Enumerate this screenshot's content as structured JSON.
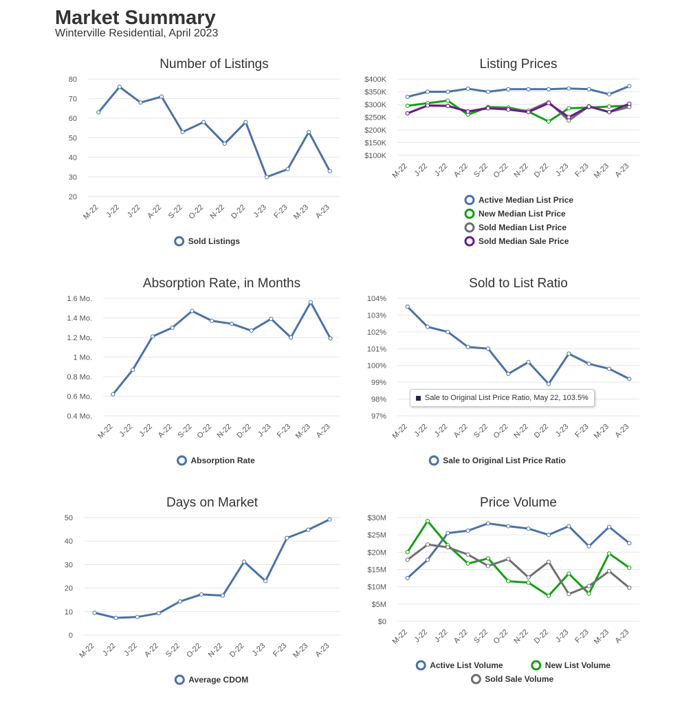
{
  "header": {
    "title": "Market Summary",
    "subtitle": "Winterville Residential, April 2023"
  },
  "colors": {
    "blue": "#4a72a8",
    "green": "#14a014",
    "gray": "#6f6f6f",
    "purple": "#6b1a8c"
  },
  "chart_data": [
    {
      "id": "listings",
      "type": "line",
      "title": "Number of Listings",
      "categories": [
        "M-22",
        "J-22",
        "J-22",
        "A-22",
        "S-22",
        "O-22",
        "N-22",
        "D-22",
        "J-23",
        "F-23",
        "M-23",
        "A-23"
      ],
      "ylim": [
        20,
        80
      ],
      "yticks": [
        20,
        30,
        40,
        50,
        60,
        70,
        80
      ],
      "ytick_labels": [
        "20",
        "30",
        "40",
        "50",
        "60",
        "70",
        "80"
      ],
      "series": [
        {
          "name": "Sold Listings",
          "color": "#4a72a8",
          "values": [
            63,
            76,
            68,
            71,
            53,
            58,
            47,
            58,
            30,
            34,
            53,
            33
          ]
        }
      ]
    },
    {
      "id": "prices",
      "type": "line",
      "title": "Listing Prices",
      "categories": [
        "M-22",
        "J-22",
        "J-22",
        "A-22",
        "S-22",
        "O-22",
        "N-22",
        "D-22",
        "J-23",
        "F-23",
        "M-23",
        "A-23"
      ],
      "ylim": [
        100000,
        400000
      ],
      "yticks": [
        100000,
        150000,
        200000,
        250000,
        300000,
        350000,
        400000
      ],
      "ytick_labels": [
        "$100K",
        "$150K",
        "$200K",
        "$250K",
        "$300K",
        "$350K",
        "$400K"
      ],
      "series": [
        {
          "name": "Active Median List Price",
          "color": "#4a72a8",
          "values": [
            330000,
            350000,
            350000,
            362000,
            350000,
            360000,
            360000,
            360000,
            363000,
            360000,
            340000,
            372000
          ]
        },
        {
          "name": "New Median List Price",
          "color": "#14a014",
          "values": [
            295000,
            305000,
            315000,
            260000,
            290000,
            288000,
            272000,
            233000,
            285000,
            288000,
            292000,
            295000
          ]
        },
        {
          "name": "Sold Median List Price",
          "color": "#6f6f6f",
          "values": [
            265000,
            296000,
            295000,
            273000,
            287000,
            282000,
            275000,
            310000,
            237000,
            293000,
            270000,
            290000
          ]
        },
        {
          "name": "Sold Median Sale Price",
          "color": "#6b1a8c",
          "values": [
            265000,
            296000,
            294000,
            272000,
            285000,
            280000,
            270000,
            305000,
            250000,
            292000,
            270000,
            303000
          ]
        }
      ]
    },
    {
      "id": "absorption",
      "type": "line",
      "title": "Absorption Rate, in Months",
      "categories": [
        "M-22",
        "J-22",
        "J-22",
        "A-22",
        "S-22",
        "O-22",
        "N-22",
        "D-22",
        "J-23",
        "F-23",
        "M-23",
        "A-23"
      ],
      "ylim": [
        0.4,
        1.6
      ],
      "yticks": [
        0.4,
        0.6,
        0.8,
        1.0,
        1.2,
        1.4,
        1.6
      ],
      "ytick_labels": [
        "0.4 Mo.",
        "0.6 Mo.",
        "0.8 Mo.",
        "1 Mo.",
        "1.2 Mo.",
        "1.4 Mo.",
        "1.6 Mo."
      ],
      "series": [
        {
          "name": "Absorption Rate",
          "color": "#4a72a8",
          "values": [
            0.62,
            0.87,
            1.21,
            1.3,
            1.47,
            1.37,
            1.34,
            1.27,
            1.39,
            1.2,
            1.56,
            1.19
          ]
        }
      ]
    },
    {
      "id": "ratio",
      "type": "line",
      "title": "Sold to List Ratio",
      "categories": [
        "M-22",
        "J-22",
        "J-22",
        "A-22",
        "S-22",
        "O-22",
        "N-22",
        "D-22",
        "J-23",
        "F-23",
        "M-23",
        "A-23"
      ],
      "ylim": [
        97,
        104
      ],
      "yticks": [
        97,
        98,
        99,
        100,
        101,
        102,
        103,
        104
      ],
      "ytick_labels": [
        "97%",
        "98%",
        "99%",
        "100%",
        "101%",
        "102%",
        "103%",
        "104%"
      ],
      "series": [
        {
          "name": "Sale to Original List Price Ratio",
          "color": "#4a72a8",
          "values": [
            103.5,
            102.3,
            102.0,
            101.1,
            101.0,
            99.5,
            100.2,
            98.9,
            100.7,
            100.1,
            99.8,
            99.2
          ]
        }
      ],
      "tooltip": "Sale to Original List Price Ratio, May 22, 103.5%"
    },
    {
      "id": "dom",
      "type": "line",
      "title": "Days on Market",
      "categories": [
        "M-22",
        "J-22",
        "J-22",
        "A-22",
        "S-22",
        "O-22",
        "N-22",
        "D-22",
        "J-23",
        "F-23",
        "M-23",
        "A-23"
      ],
      "ylim": [
        0,
        50
      ],
      "yticks": [
        0,
        10,
        20,
        30,
        40,
        50
      ],
      "ytick_labels": [
        "0",
        "10",
        "20",
        "30",
        "40",
        "50"
      ],
      "series": [
        {
          "name": "Average CDOM",
          "color": "#4a72a8",
          "values": [
            9.5,
            7.3,
            7.7,
            9.3,
            14.3,
            17.3,
            16.8,
            31.2,
            23.0,
            41.3,
            44.8,
            49.2
          ]
        }
      ]
    },
    {
      "id": "volume",
      "type": "line",
      "title": "Price Volume",
      "categories": [
        "M-22",
        "J-22",
        "J-22",
        "A-22",
        "S-22",
        "O-22",
        "N-22",
        "D-22",
        "J-23",
        "F-23",
        "M-23",
        "A-23"
      ],
      "ylim": [
        0,
        30
      ],
      "yticks": [
        0,
        5,
        10,
        15,
        20,
        25,
        30
      ],
      "ytick_labels": [
        "$0",
        "$5M",
        "$10M",
        "$15M",
        "$20M",
        "$25M",
        "$30M"
      ],
      "series": [
        {
          "name": "Active List Volume",
          "color": "#4a72a8",
          "values": [
            12.5,
            17.8,
            25.5,
            26.2,
            28.3,
            27.5,
            26.8,
            25.0,
            27.5,
            21.7,
            27.3,
            22.6
          ]
        },
        {
          "name": "New List Volume",
          "color": "#14a014",
          "values": [
            20.0,
            29.0,
            22.0,
            16.7,
            18.2,
            11.6,
            11.2,
            7.4,
            13.8,
            8.0,
            19.6,
            15.5
          ]
        },
        {
          "name": "Sold Sale Volume",
          "color": "#6f6f6f",
          "values": [
            17.8,
            22.2,
            21.4,
            19.3,
            16.0,
            18.0,
            12.7,
            17.2,
            7.9,
            10.2,
            14.5,
            9.7
          ]
        }
      ]
    }
  ]
}
